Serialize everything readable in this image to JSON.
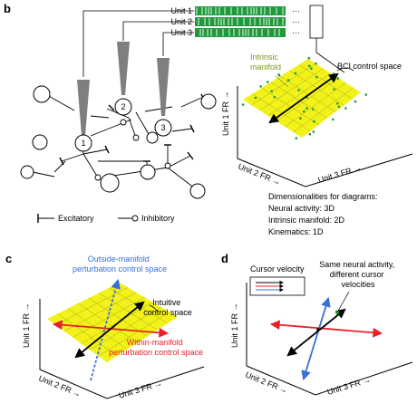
{
  "panel_b": {
    "letter": "b",
    "unit_labels": [
      "Unit 1",
      "Unit 2",
      "Unit 3"
    ],
    "ellipsis": "···",
    "intrinsic_manifold": "Intrinsic\nmanifold",
    "bci_control_space": "BCI control space",
    "neurons": [
      "1",
      "2",
      "3"
    ],
    "axis_unit1": "Unit 1 FR →",
    "axis_unit2": "Unit 2 FR →",
    "axis_unit3": "Unit 3 FR →",
    "legend_excitatory": "Excitatory",
    "legend_inhibitory": "Inhibitory",
    "dims_title": "Dimensionalities for diagrams:",
    "dims_neural": "Neural activity: 3D",
    "dims_manifold": "Intrinsic manifold: 2D",
    "dims_kinematics": "Kinematics: 1D"
  },
  "panel_c": {
    "letter": "c",
    "outside_manifold": "Outside-manifold\nperturbation control space",
    "intuitive": "Intuitive\ncontrol space",
    "within_manifold": "Within-manifold\nperturbation control space",
    "axis_unit1": "Unit 1 FR →",
    "axis_unit2": "Unit 2 FR →",
    "axis_unit3": "Unit 3 FR →"
  },
  "panel_d": {
    "letter": "d",
    "cursor_velocity": "Cursor velocity",
    "same_activity": "Same neural activity,\ndifferent cursor\nvelocities",
    "axis_unit1": "Unit 1 FR →",
    "axis_unit2": "Unit 2 FR →",
    "axis_unit3": "Unit 3 FR →"
  },
  "colors": {
    "manifold_yellow": "#f2f21a",
    "manifold_green": "#7a9a1c",
    "raster_green": "#1e9a3c",
    "outside_blue": "#3a6fd8",
    "within_red": "#e8202a",
    "neuron_grey": "#7f7f7f"
  }
}
